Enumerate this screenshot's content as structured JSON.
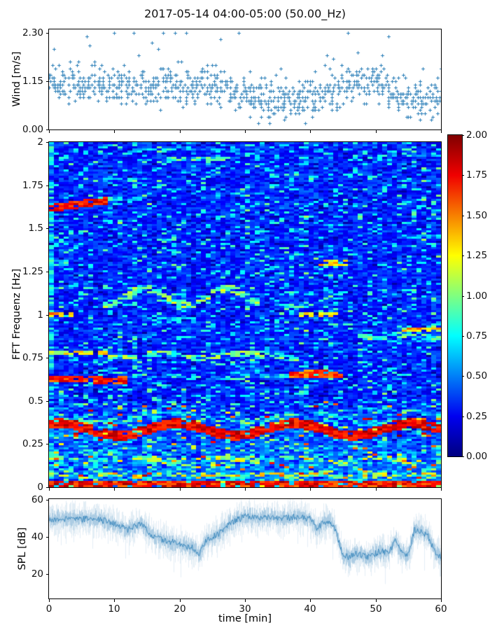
{
  "figure": {
    "title": "2017-05-14 04:00-05:00 (50.00_Hz)",
    "background": "#ffffff",
    "accent_blue": "#1f77b4"
  },
  "xaxis": {
    "label": "time [min]",
    "lim": [
      0,
      60
    ],
    "ticks": [
      {
        "label": "0",
        "v": 0
      },
      {
        "label": "10",
        "v": 10
      },
      {
        "label": "20",
        "v": 20
      },
      {
        "label": "30",
        "v": 30
      },
      {
        "label": "40",
        "v": 40
      },
      {
        "label": "50",
        "v": 50
      },
      {
        "label": "60",
        "v": 60
      }
    ]
  },
  "chart_data": [
    {
      "type": "scatter",
      "name": "wind-speed",
      "ylabel": "Wind [m/s]",
      "ylim": [
        0,
        2.38
      ],
      "yticks": [
        {
          "label": "0.00",
          "v": 0.0
        },
        {
          "label": "1.15",
          "v": 1.15
        },
        {
          "label": "2.30",
          "v": 2.3
        }
      ],
      "marker": "plus",
      "color": "#1f77b4",
      "quantum": 0.0766,
      "n_points": 950,
      "spread": 0.33,
      "outlier_prob": 0.035,
      "seed": 20170514,
      "mean_profile": {
        "t": [
          0,
          3,
          6,
          9,
          12,
          15,
          18,
          21,
          24,
          27,
          30,
          33,
          36,
          39,
          42,
          45,
          48,
          51,
          54,
          57,
          60
        ],
        "v": [
          1.0,
          1.05,
          1.0,
          1.1,
          1.05,
          1.0,
          1.05,
          1.0,
          1.05,
          0.95,
          0.8,
          0.72,
          0.7,
          0.72,
          0.8,
          1.05,
          1.15,
          1.05,
          0.85,
          0.72,
          0.88
        ]
      }
    },
    {
      "type": "heatmap",
      "name": "fft-spectrogram",
      "ylabel": "FFT Frequenz [Hz]",
      "ylim": [
        0,
        2
      ],
      "clim": [
        0,
        2
      ],
      "colormap": "jet",
      "grid": false,
      "yticks": [
        {
          "label": "0",
          "v": 0
        },
        {
          "label": "0.25",
          "v": 0.25
        },
        {
          "label": "0.5",
          "v": 0.5
        },
        {
          "label": "0.75",
          "v": 0.75
        },
        {
          "label": "1",
          "v": 1
        },
        {
          "label": "1.25",
          "v": 1.25
        },
        {
          "label": "1.5",
          "v": 1.5
        },
        {
          "label": "1.75",
          "v": 1.75
        },
        {
          "label": "2",
          "v": 2
        }
      ],
      "colorbar": {
        "position": "right",
        "ticks": [
          {
            "label": "0.00",
            "v": 0.0
          },
          {
            "label": "0.25",
            "v": 0.25
          },
          {
            "label": "0.50",
            "v": 0.5
          },
          {
            "label": "0.75",
            "v": 0.75
          },
          {
            "label": "1.00",
            "v": 1.0
          },
          {
            "label": "1.25",
            "v": 1.25
          },
          {
            "label": "1.50",
            "v": 1.5
          },
          {
            "label": "1.75",
            "v": 1.75
          },
          {
            "label": "2.00",
            "v": 2.0
          }
        ]
      },
      "n_time_bins": 80,
      "n_freq_bins": 164,
      "seed": 777,
      "background": {
        "base": 0.17,
        "noise": 0.28,
        "speckle_prob": 0.16,
        "speckle_min": 0.3,
        "speckle_rand": 0.35,
        "dark_prob": 0.06,
        "lowfreq_cut": 0.5,
        "lowfreq_gain": 0.5,
        "lowfreq_speckle_prob": 0.22,
        "lowfreq_red_prob": 0.03,
        "col_min": 0.92,
        "col_rand": 0.18
      },
      "bands": [
        {
          "t0": 0,
          "t1": 60,
          "f": 0.015,
          "slope": 0,
          "amp": 0,
          "per": 0,
          "ph": 0,
          "w": 0.022,
          "v": 1.95,
          "vr": 0.45,
          "gap": 0.12
        },
        {
          "t0": 0,
          "t1": 60,
          "f": 0.07,
          "slope": 0,
          "amp": 0.008,
          "per": 0.8,
          "ph": 0,
          "w": 0.012,
          "v": 1.5,
          "vr": 0.7,
          "gap": 0.45
        },
        {
          "t0": 0,
          "t1": 60,
          "f": 0.16,
          "slope": 0,
          "amp": 0.01,
          "per": 0.5,
          "ph": 1.5,
          "w": 0.012,
          "v": 1.35,
          "vr": 0.65,
          "gap": 0.55
        },
        {
          "t0": 0,
          "t1": 60,
          "f": 0.335,
          "slope": 0,
          "amp": 0.035,
          "per": 0.35,
          "ph": 1.0,
          "w": 0.028,
          "v": 1.95,
          "vr": 0.35,
          "gap": 0.05
        },
        {
          "t0": 0,
          "t1": 60,
          "f": 0.405,
          "slope": 0,
          "amp": 0.025,
          "per": 0.3,
          "ph": 2.2,
          "w": 0.014,
          "v": 1.05,
          "vr": 0.55,
          "gap": 0.5
        },
        {
          "t0": 0,
          "t1": 12,
          "f": 0.625,
          "slope": 0,
          "amp": 0.006,
          "per": 0.5,
          "ph": 0,
          "w": 0.02,
          "v": 1.85,
          "vr": 0.4,
          "gap": 0.1
        },
        {
          "t0": 12,
          "t1": 37,
          "f": 0.64,
          "slope": 0,
          "amp": 0.008,
          "per": 0.4,
          "ph": 0.7,
          "w": 0.014,
          "v": 0.95,
          "vr": 0.5,
          "gap": 0.5
        },
        {
          "t0": 37,
          "t1": 45,
          "f": 0.655,
          "slope": 0,
          "amp": 0.004,
          "per": 0.5,
          "ph": 0,
          "w": 0.02,
          "v": 1.8,
          "vr": 0.4,
          "gap": 0.12
        },
        {
          "t0": 0,
          "t1": 9,
          "f": 0.78,
          "slope": 0,
          "amp": 0,
          "per": 0,
          "ph": 0,
          "w": 0.016,
          "v": 1.45,
          "vr": 0.45,
          "gap": 0.3
        },
        {
          "t0": 9,
          "t1": 40,
          "f": 0.765,
          "slope": 0,
          "amp": 0.012,
          "per": 0.45,
          "ph": 0.3,
          "w": 0.016,
          "v": 1.25,
          "vr": 0.55,
          "gap": 0.4
        },
        {
          "t0": 47,
          "t1": 60,
          "f": 0.875,
          "slope": 0,
          "amp": 0.01,
          "per": 0.6,
          "ph": 0,
          "w": 0.016,
          "v": 1.15,
          "vr": 0.5,
          "gap": 0.35
        },
        {
          "t0": 54,
          "t1": 60,
          "f": 0.92,
          "slope": 0,
          "amp": 0,
          "per": 0,
          "ph": 0,
          "w": 0.012,
          "v": 1.6,
          "vr": 0.45,
          "gap": 0.25
        },
        {
          "t0": 0,
          "t1": 4,
          "f": 1.0,
          "slope": 0,
          "amp": 0,
          "per": 0,
          "ph": 0,
          "w": 0.016,
          "v": 1.6,
          "vr": 0.4,
          "gap": 0.2
        },
        {
          "t0": 38,
          "t1": 44,
          "f": 1.0,
          "slope": 0,
          "amp": 0,
          "per": 0,
          "ph": 0,
          "w": 0.014,
          "v": 1.5,
          "vr": 0.5,
          "gap": 0.3
        },
        {
          "t0": 16,
          "t1": 23,
          "f": 0.98,
          "slope": 0,
          "amp": 0,
          "per": 0,
          "ph": 0,
          "w": 0.012,
          "v": 0.85,
          "vr": 0.4,
          "gap": 0.45
        },
        {
          "t0": 8,
          "t1": 32,
          "f": 1.1,
          "slope": 0,
          "amp": 0.05,
          "per": 0.5,
          "ph": 0.5,
          "w": 0.02,
          "v": 1.25,
          "vr": 0.5,
          "gap": 0.3
        },
        {
          "t0": 41,
          "t1": 46,
          "f": 1.3,
          "slope": 0,
          "amp": 0,
          "per": 0,
          "ph": 0,
          "w": 0.016,
          "v": 1.55,
          "vr": 0.45,
          "gap": 0.2
        },
        {
          "t0": 0,
          "t1": 3,
          "f": 1.3,
          "slope": 0,
          "amp": 0,
          "per": 0,
          "ph": 0,
          "w": 0.014,
          "v": 0.95,
          "vr": 0.4,
          "gap": 0.3
        },
        {
          "t0": 0,
          "t1": 9,
          "f": 1.615,
          "slope": 0.005,
          "amp": 0,
          "per": 0,
          "ph": 0,
          "w": 0.022,
          "v": 1.9,
          "vr": 0.35,
          "gap": 0.08
        },
        {
          "t0": 9,
          "t1": 15,
          "f": 1.67,
          "slope": 0,
          "amp": 0,
          "per": 0,
          "ph": 0,
          "w": 0.014,
          "v": 0.95,
          "vr": 0.45,
          "gap": 0.4
        },
        {
          "t0": 8,
          "t1": 15,
          "f": 1.78,
          "slope": 0,
          "amp": 0,
          "per": 0,
          "ph": 0,
          "w": 0.014,
          "v": 1.05,
          "vr": 0.5,
          "gap": 0.45
        },
        {
          "t0": 18,
          "t1": 28,
          "f": 1.9,
          "slope": 0,
          "amp": 0,
          "per": 0,
          "ph": 0,
          "w": 0.014,
          "v": 1.05,
          "vr": 0.5,
          "gap": 0.5
        },
        {
          "t0": 12,
          "t1": 35,
          "f": 1.95,
          "slope": 0,
          "amp": 0,
          "per": 0,
          "ph": 0,
          "w": 0.012,
          "v": 0.8,
          "vr": 0.4,
          "gap": 0.55
        },
        {
          "t0": 53,
          "t1": 60,
          "f": 1.45,
          "slope": 0,
          "amp": 0,
          "per": 0,
          "ph": 0,
          "w": 0.012,
          "v": 0.78,
          "vr": 0.4,
          "gap": 0.5
        },
        {
          "t0": 55,
          "t1": 60,
          "f": 1.93,
          "slope": 0,
          "amp": 0,
          "per": 0,
          "ph": 0,
          "w": 0.012,
          "v": 0.85,
          "vr": 0.4,
          "gap": 0.5
        },
        {
          "t0": 0,
          "t1": 0.8,
          "f": 1.0,
          "slope": 0,
          "amp": 0,
          "per": 0,
          "ph": 0,
          "w": 1.0,
          "v": 0.9,
          "vr": 0.55,
          "gap": 0.25
        }
      ]
    },
    {
      "type": "line",
      "name": "spl",
      "ylabel": "SPL [dB]",
      "ylim": [
        6.8,
        60.4
      ],
      "yticks": [
        {
          "label": "20",
          "v": 20
        },
        {
          "label": "40",
          "v": 40
        },
        {
          "label": "60",
          "v": 60
        }
      ],
      "color": "#1f77b4",
      "seed": 99,
      "band": {
        "outer_alpha": 0.13,
        "mid_alpha": 0.28,
        "core_alpha": 0.78,
        "outer_up": 8,
        "outer_dn": 9,
        "mid": 4,
        "spike_prob": 0.05,
        "spike_len": 11
      },
      "mean_profile": {
        "t": [
          0,
          2,
          4,
          6,
          8,
          10,
          12,
          14,
          16,
          18,
          20,
          22,
          23,
          24,
          26,
          28,
          30,
          32,
          34,
          36,
          38,
          40,
          41,
          42,
          43,
          44,
          45,
          46,
          47,
          48,
          49,
          50,
          51,
          52,
          53,
          54,
          55,
          56,
          57,
          58,
          59,
          60
        ],
        "v": [
          49,
          50,
          49,
          50,
          49,
          47,
          44,
          47,
          40,
          38,
          36,
          34,
          31,
          38,
          42,
          48,
          51,
          50,
          51,
          50,
          51,
          50,
          44,
          48,
          49,
          43,
          30,
          29,
          31,
          30,
          29,
          31,
          33,
          31,
          38,
          32,
          30,
          44,
          43,
          41,
          33,
          29
        ]
      }
    }
  ]
}
